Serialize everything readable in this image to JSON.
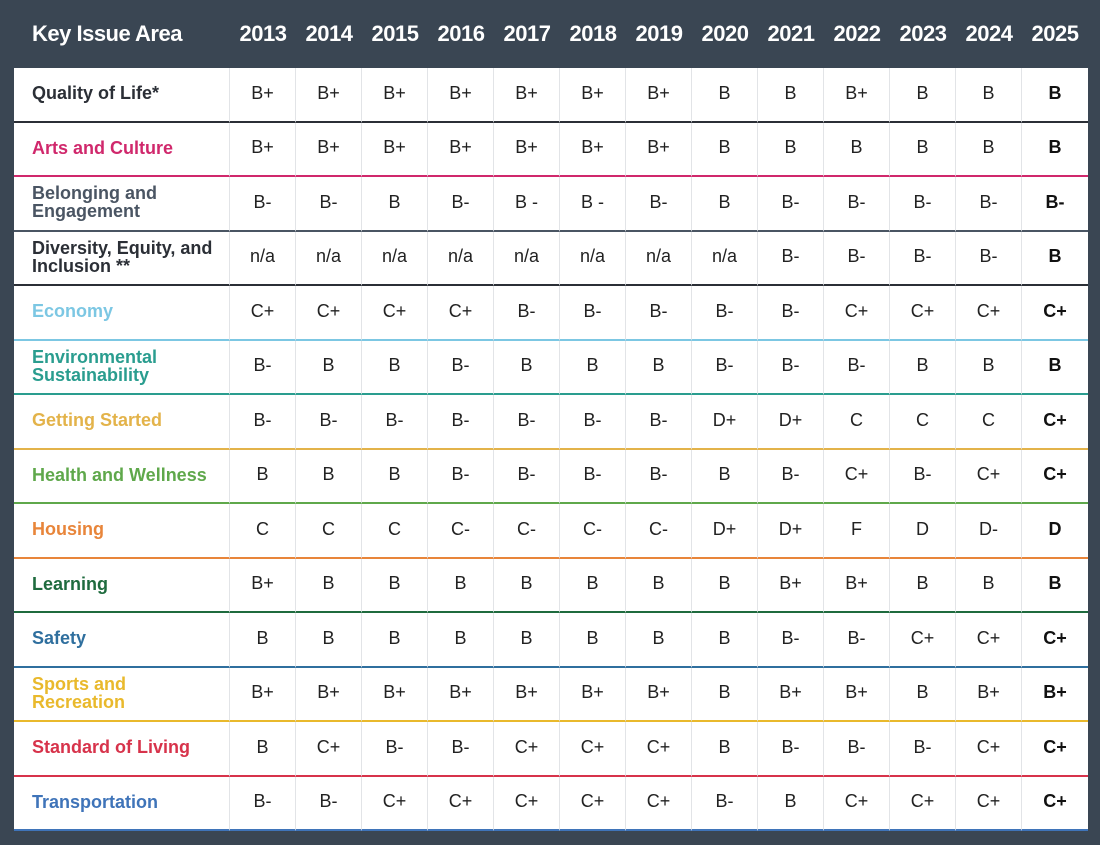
{
  "header": {
    "label": "Key Issue Area",
    "years": [
      "2013",
      "2014",
      "2015",
      "2016",
      "2017",
      "2018",
      "2019",
      "2020",
      "2021",
      "2022",
      "2023",
      "2024",
      "2025"
    ]
  },
  "rows": [
    {
      "name": "Quality of Life*",
      "color": "#2b2f36",
      "grades": [
        "B+",
        "B+",
        "B+",
        "B+",
        "B+",
        "B+",
        "B+",
        "B",
        "B",
        "B+",
        "B",
        "B",
        "B"
      ]
    },
    {
      "name": "Arts and Culture",
      "color": "#d0286c",
      "grades": [
        "B+",
        "B+",
        "B+",
        "B+",
        "B+",
        "B+",
        "B+",
        "B",
        "B",
        "B",
        "B",
        "B",
        "B"
      ]
    },
    {
      "name": "Belonging and Engagement",
      "color": "#4a5563",
      "grades": [
        "B-",
        "B-",
        "B",
        "B-",
        "B -",
        "B -",
        "B-",
        "B",
        "B-",
        "B-",
        "B-",
        "B-",
        "B-"
      ]
    },
    {
      "name": "Diversity, Equity, and Inclusion **",
      "color": "#2b2f36",
      "grades": [
        "n/a",
        "n/a",
        "n/a",
        "n/a",
        "n/a",
        "n/a",
        "n/a",
        "n/a",
        "B-",
        "B-",
        "B-",
        "B-",
        "B"
      ]
    },
    {
      "name": "Economy",
      "color": "#7cc7e3",
      "grades": [
        "C+",
        "C+",
        "C+",
        "C+",
        "B-",
        "B-",
        "B-",
        "B-",
        "B-",
        "C+",
        "C+",
        "C+",
        "C+"
      ]
    },
    {
      "name": "Environmental Sustainability",
      "color": "#2a9d8f",
      "grades": [
        "B-",
        "B",
        "B",
        "B-",
        "B",
        "B",
        "B",
        "B-",
        "B-",
        "B-",
        "B",
        "B",
        "B"
      ]
    },
    {
      "name": "Getting Started",
      "color": "#e3b34a",
      "grades": [
        "B-",
        "B-",
        "B-",
        "B-",
        "B-",
        "B-",
        "B-",
        "D+",
        "D+",
        "C",
        "C",
        "C",
        "C+"
      ]
    },
    {
      "name": "Health and Wellness",
      "color": "#5fa84b",
      "grades": [
        "B",
        "B",
        "B",
        "B-",
        "B-",
        "B-",
        "B-",
        "B",
        "B-",
        "C+",
        "B-",
        "C+",
        "C+"
      ]
    },
    {
      "name": "Housing",
      "color": "#e8853a",
      "grades": [
        "C",
        "C",
        "C",
        "C-",
        "C-",
        "C-",
        "C-",
        "D+",
        "D+",
        "F",
        "D",
        "D-",
        "D"
      ]
    },
    {
      "name": "Learning",
      "color": "#1f6b3e",
      "grades": [
        "B+",
        "B",
        "B",
        "B",
        "B",
        "B",
        "B",
        "B",
        "B+",
        "B+",
        "B",
        "B",
        "B"
      ]
    },
    {
      "name": "Safety",
      "color": "#2f6f9e",
      "grades": [
        "B",
        "B",
        "B",
        "B",
        "B",
        "B",
        "B",
        "B",
        "B-",
        "B-",
        "C+",
        "C+",
        "C+"
      ]
    },
    {
      "name": "Sports and Recreation",
      "color": "#e9b92c",
      "grades": [
        "B+",
        "B+",
        "B+",
        "B+",
        "B+",
        "B+",
        "B+",
        "B",
        "B+",
        "B+",
        "B",
        "B+",
        "B+"
      ]
    },
    {
      "name": "Standard of Living",
      "color": "#d7334b",
      "grades": [
        "B",
        "C+",
        "B-",
        "B-",
        "C+",
        "C+",
        "C+",
        "B",
        "B-",
        "B-",
        "B-",
        "C+",
        "C+"
      ]
    },
    {
      "name": "Transportation",
      "color": "#3f74b9",
      "grades": [
        "B-",
        "B-",
        "C+",
        "C+",
        "C+",
        "C+",
        "C+",
        "B-",
        "B",
        "C+",
        "C+",
        "C+",
        "C+"
      ]
    }
  ]
}
